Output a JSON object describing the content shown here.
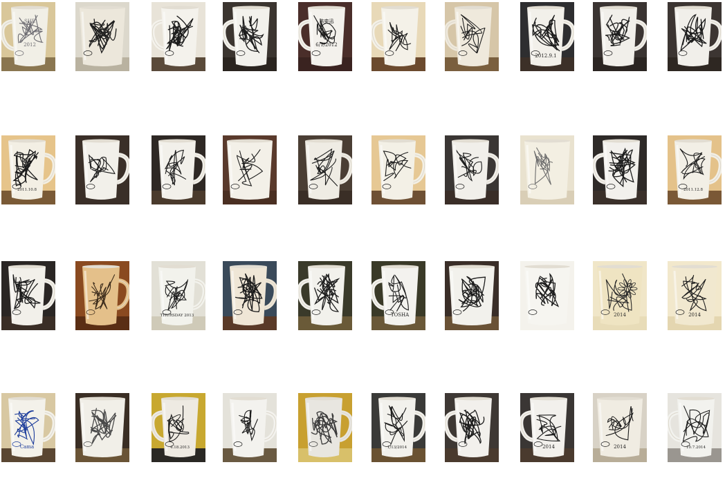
{
  "gallery": {
    "rows": [
      [
        {
          "bg": "#d9c79a",
          "table": "#8a7650",
          "mug": "#f1efe6",
          "ink": "#6b6a70",
          "handle": "left",
          "sig": "SHE\n2012",
          "marks": "loops"
        },
        {
          "bg": "#dcd8cc",
          "table": "#b9b2a0",
          "mug": "#ece7db",
          "ink": "#1c1c1c",
          "handle": "none",
          "sig": "",
          "marks": "scribble"
        },
        {
          "bg": "#e8e3d8",
          "table": "#5a4a3a",
          "mug": "#f4f2ec",
          "ink": "#1c1c1c",
          "handle": "left",
          "sig": "",
          "marks": "scribble"
        },
        {
          "bg": "#3b3530",
          "table": "#2a241f",
          "mug": "#f2f1ec",
          "ink": "#1c1c1c",
          "handle": "left",
          "sig": "",
          "marks": "scribble"
        },
        {
          "bg": "#4a2e2a",
          "table": "#3a2320",
          "mug": "#f3f1ec",
          "ink": "#1c1c1c",
          "handle": "left",
          "sig": "陈奕迅\n6/1/2012",
          "marks": "text"
        },
        {
          "bg": "#e8d9b8",
          "table": "#6b4a2e",
          "mug": "#f4f1e8",
          "ink": "#1c1c1c",
          "handle": "left",
          "sig": "",
          "marks": "stroke"
        },
        {
          "bg": "#d6c6a8",
          "table": "#7a5f3e",
          "mug": "#efe9dc",
          "ink": "#1c1c1c",
          "handle": "left",
          "sig": "",
          "marks": "stroke"
        },
        {
          "bg": "#2e2e30",
          "table": "#3c3028",
          "mug": "#f2f0ea",
          "ink": "#1c1c1c",
          "handle": "right",
          "sig": "2012.9.1",
          "marks": "scribble"
        },
        {
          "bg": "#3a3432",
          "table": "#2b2522",
          "mug": "#f1efea",
          "ink": "#1c1c1c",
          "handle": "right",
          "sig": "",
          "marks": "scribble"
        },
        {
          "bg": "#3c3532",
          "table": "#2e2722",
          "mug": "#f1efea",
          "ink": "#1c1c1c",
          "handle": "right",
          "sig": "",
          "marks": "scribble"
        }
      ],
      [
        {
          "bg": "#e6c48a",
          "table": "#7a5a36",
          "mug": "#f3efe4",
          "ink": "#1c1c1c",
          "handle": "right",
          "sig": "2011.10.8",
          "marks": "scribble"
        },
        {
          "bg": "#3a2f28",
          "table": "#3a2f28",
          "mug": "#f2f0ea",
          "ink": "#1c1c1c",
          "handle": "right",
          "sig": "",
          "marks": "stroke"
        },
        {
          "bg": "#2e2824",
          "table": "#4a3a2c",
          "mug": "#f2f0ea",
          "ink": "#1c1c1c",
          "handle": "right",
          "sig": "",
          "marks": "text"
        },
        {
          "bg": "#5a3a2c",
          "table": "#4a2f22",
          "mug": "#f3f0e8",
          "ink": "#1c1c1c",
          "handle": "none",
          "sig": "",
          "marks": "text"
        },
        {
          "bg": "#4a3e34",
          "table": "#3a2e26",
          "mug": "#efece4",
          "ink": "#1c1c1c",
          "handle": "right",
          "sig": "",
          "marks": "text"
        },
        {
          "bg": "#e6c894",
          "table": "#6e5034",
          "mug": "#f3f0e6",
          "ink": "#1c1c1c",
          "handle": "right",
          "sig": "",
          "marks": "text"
        },
        {
          "bg": "#3a3634",
          "table": "#3a2e28",
          "mug": "#f1efea",
          "ink": "#1c1c1c",
          "handle": "right",
          "sig": "",
          "marks": "stroke"
        },
        {
          "bg": "#e9e2cf",
          "table": "#d9ceb6",
          "mug": "#f3efe2",
          "ink": "#6c6c6c",
          "handle": "none",
          "sig": "",
          "marks": "loops"
        },
        {
          "bg": "#2e2a28",
          "table": "#3a302a",
          "mug": "#f2f0ec",
          "ink": "#1c1c1c",
          "handle": "left",
          "sig": "",
          "marks": "scribble"
        },
        {
          "bg": "#e4c28a",
          "table": "#7a5836",
          "mug": "#f2efe6",
          "ink": "#1c1c1c",
          "handle": "right",
          "sig": "2011.12.8",
          "marks": "text"
        }
      ],
      [
        {
          "bg": "#2a2624",
          "table": "#3a2e26",
          "mug": "#f2f0ea",
          "ink": "#1c1c1c",
          "handle": "right",
          "sig": "",
          "marks": "scribble"
        },
        {
          "bg": "#8a4a20",
          "table": "#5a2e14",
          "mug": "#e4c08a",
          "ink": "#3a2a1a",
          "handle": "right",
          "sig": "",
          "marks": "loops"
        },
        {
          "bg": "#e2e0d6",
          "table": "#cfcab8",
          "mug": "#f2f2ec",
          "ink": "#1c1c1c",
          "handle": "right",
          "sig": "THURSDAY 2013",
          "marks": "text"
        },
        {
          "bg": "#3a4a5a",
          "table": "#5a3a28",
          "mug": "#efe6d6",
          "ink": "#1c1c1c",
          "handle": "right",
          "sig": "",
          "marks": "scribble"
        },
        {
          "bg": "#3a3a2a",
          "table": "#6a5a38",
          "mug": "#f2f1ec",
          "ink": "#1c1c1c",
          "handle": "left",
          "sig": "",
          "marks": "scribble"
        },
        {
          "bg": "#3a3a28",
          "table": "#6a5838",
          "mug": "#f3f2ee",
          "ink": "#1c1c1c",
          "handle": "left",
          "sig": "TOSHA",
          "marks": "text"
        },
        {
          "bg": "#3a2e28",
          "table": "#6a5236",
          "mug": "#f2f1ec",
          "ink": "#1c1c1c",
          "handle": "none",
          "sig": "",
          "marks": "scribble"
        },
        {
          "bg": "#f4f2ec",
          "table": "#f4f2ec",
          "mug": "#f6f5f0",
          "ink": "#1c1c1c",
          "handle": "none",
          "sig": "",
          "marks": "scribble"
        },
        {
          "bg": "#f0e6c8",
          "table": "#e8dcb8",
          "mug": "#efe4c2",
          "ink": "#2a2a2a",
          "handle": "none",
          "sig": "2014",
          "marks": "sunflower"
        },
        {
          "bg": "#f2e8cc",
          "table": "#e4d6b0",
          "mug": "#f1e8cf",
          "ink": "#1c1c1c",
          "handle": "none",
          "sig": "2014",
          "marks": "stroke"
        }
      ],
      [
        {
          "bg": "#d8c8a2",
          "table": "#5a4632",
          "mug": "#f3f1ea",
          "ink": "#1a3a9a",
          "handle": "right",
          "sig": "Cama",
          "marks": "loops"
        },
        {
          "bg": "#3a2e24",
          "table": "#6a5436",
          "mug": "#f1efe8",
          "ink": "#4a4a4a",
          "handle": "none",
          "sig": "",
          "marks": "scribble"
        },
        {
          "bg": "#c8a830",
          "table": "#2a2824",
          "mug": "#eeeae2",
          "ink": "#1c1c1c",
          "handle": "left",
          "sig": "4.18.2013",
          "marks": "text"
        },
        {
          "bg": "#e4e2da",
          "table": "#6a5a42",
          "mug": "#f3f2ee",
          "ink": "#1c1c1c",
          "handle": "right",
          "sig": "",
          "marks": "text"
        },
        {
          "bg": "#c8a030",
          "table": "#d8c06a",
          "mug": "#e8e6e0",
          "ink": "#3a3a3a",
          "handle": "right",
          "sig": "",
          "marks": "scribble"
        },
        {
          "bg": "#3a3a38",
          "table": "#6a5232",
          "mug": "#f2f1ec",
          "ink": "#1c1c1c",
          "handle": "right",
          "sig": "1/13/2014",
          "marks": "text"
        },
        {
          "bg": "#3e3834",
          "table": "#4a3a2e",
          "mug": "#f2f0ec",
          "ink": "#1c1c1c",
          "handle": "left",
          "sig": "",
          "marks": "scribble"
        },
        {
          "bg": "#3a3634",
          "table": "#4a3a2e",
          "mug": "#f2f0ec",
          "ink": "#1c1c1c",
          "handle": "left",
          "sig": "2014",
          "marks": "loops"
        },
        {
          "bg": "#d8d2c6",
          "table": "#b8ad98",
          "mug": "#f0ece2",
          "ink": "#1c1c1c",
          "handle": "none",
          "sig": "2014",
          "marks": "stroke"
        },
        {
          "bg": "#e6e4de",
          "table": "#9a9690",
          "mug": "#f2f2ee",
          "ink": "#1c1c1c",
          "handle": "left",
          "sig": "10.7.2014",
          "marks": "text"
        }
      ]
    ]
  }
}
